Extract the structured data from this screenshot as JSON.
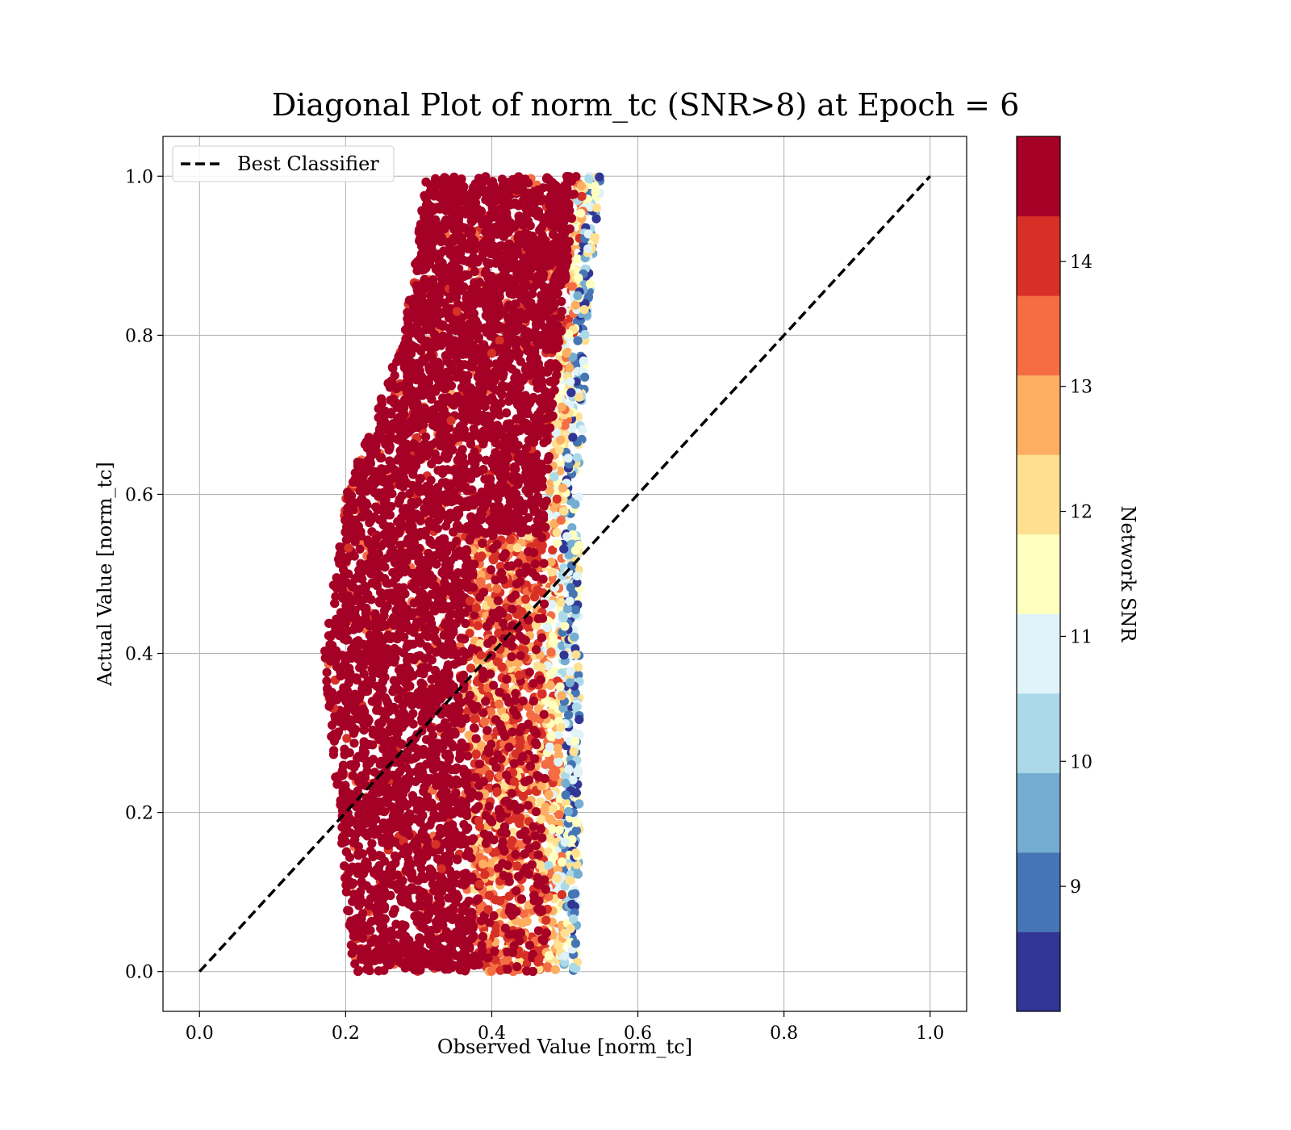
{
  "chart_data": {
    "type": "scatter",
    "title": "Diagonal Plot of norm_tc (SNR>8) at Epoch = 6",
    "xlabel": "Observed Value [norm_tc]",
    "ylabel": "Actual Value [norm_tc]",
    "xlim": [
      -0.05,
      1.05
    ],
    "ylim": [
      -0.05,
      1.05
    ],
    "xticks": [
      "0.0",
      "0.2",
      "0.4",
      "0.6",
      "0.8",
      "1.0"
    ],
    "yticks": [
      "0.0",
      "0.2",
      "0.4",
      "0.6",
      "0.8",
      "1.0"
    ],
    "grid": true,
    "legend": {
      "placement": "top-left",
      "entries": [
        {
          "label": "Best Classifier",
          "style": "dashed",
          "color": "#000000"
        }
      ]
    },
    "reference_line": {
      "name": "Best Classifier",
      "x": [
        0.0,
        1.0
      ],
      "y": [
        0.0,
        1.0
      ]
    },
    "colorbar": {
      "label": "Network SNR",
      "range": [
        8,
        15
      ],
      "ticks": [
        "9",
        "10",
        "11",
        "12",
        "13",
        "14"
      ],
      "colors": [
        "#313695",
        "#4575b4",
        "#74add1",
        "#abd9e9",
        "#e0f3f8",
        "#ffffbf",
        "#fee090",
        "#fdae61",
        "#f46d43",
        "#d73027",
        "#a50026"
      ]
    },
    "point_cloud": {
      "description_x_range_by_y": [
        {
          "y": 0.0,
          "x_min": 0.21,
          "x_max": 0.52
        },
        {
          "y": 0.2,
          "x_min": 0.19,
          "x_max": 0.52
        },
        {
          "y": 0.4,
          "x_min": 0.17,
          "x_max": 0.52
        },
        {
          "y": 0.6,
          "x_min": 0.2,
          "x_max": 0.52
        },
        {
          "y": 0.8,
          "x_min": 0.28,
          "x_max": 0.53
        },
        {
          "y": 1.0,
          "x_min": 0.31,
          "x_max": 0.55
        }
      ],
      "dominant_snr": 14.5
    }
  }
}
